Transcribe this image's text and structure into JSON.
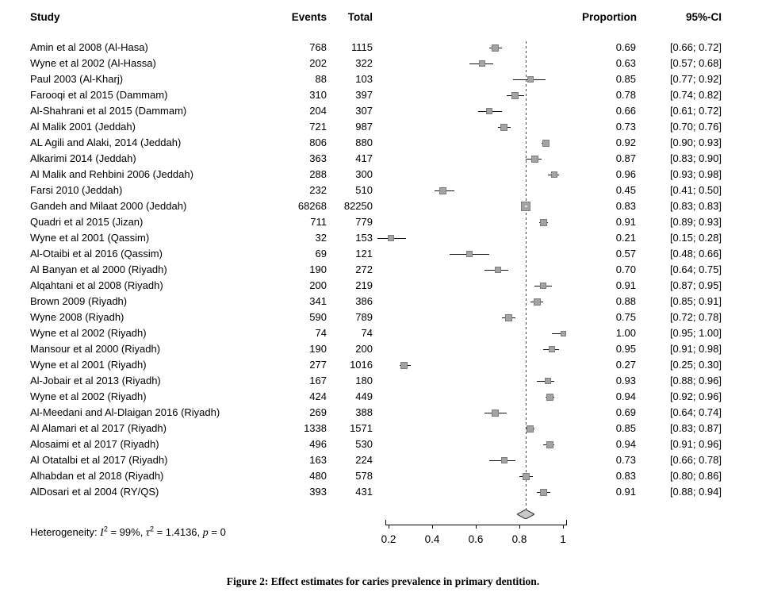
{
  "header": {
    "study": "Study",
    "events": "Events",
    "total": "Total",
    "proportion": "Proportion",
    "ci": "95%-CI"
  },
  "chart_data": {
    "type": "forest",
    "title": "",
    "x_ticks": [
      0.2,
      0.4,
      0.6,
      0.8,
      1
    ],
    "axis_range": [
      0.13,
      1.02
    ],
    "dashed_reference_line": 0.83,
    "pooled": {
      "proportion": 0.83,
      "ci_low": 0.79,
      "ci_high": 0.87
    },
    "marker_color": "#a3a3a3",
    "studies": [
      {
        "study": "Amin et al 2008 (Al-Hasa)",
        "events": 768,
        "total": 1115,
        "proportion": 0.69,
        "ci_low": 0.66,
        "ci_high": 0.72
      },
      {
        "study": "Wyne et al 2002 (Al-Hassa)",
        "events": 202,
        "total": 322,
        "proportion": 0.63,
        "ci_low": 0.57,
        "ci_high": 0.68
      },
      {
        "study": "Paul 2003 (Al-Kharj)",
        "events": 88,
        "total": 103,
        "proportion": 0.85,
        "ci_low": 0.77,
        "ci_high": 0.92
      },
      {
        "study": "Farooqi et al 2015 (Dammam)",
        "events": 310,
        "total": 397,
        "proportion": 0.78,
        "ci_low": 0.74,
        "ci_high": 0.82
      },
      {
        "study": "Al-Shahrani et al 2015 (Dammam)",
        "events": 204,
        "total": 307,
        "proportion": 0.66,
        "ci_low": 0.61,
        "ci_high": 0.72
      },
      {
        "study": "Al Malik 2001 (Jeddah)",
        "events": 721,
        "total": 987,
        "proportion": 0.73,
        "ci_low": 0.7,
        "ci_high": 0.76
      },
      {
        "study": "AL Agili and Alaki, 2014 (Jeddah)",
        "events": 806,
        "total": 880,
        "proportion": 0.92,
        "ci_low": 0.9,
        "ci_high": 0.93
      },
      {
        "study": "Alkarimi 2014 (Jeddah)",
        "events": 363,
        "total": 417,
        "proportion": 0.87,
        "ci_low": 0.83,
        "ci_high": 0.9
      },
      {
        "study": "Al Malik and Rehbini 2006 (Jeddah)",
        "events": 288,
        "total": 300,
        "proportion": 0.96,
        "ci_low": 0.93,
        "ci_high": 0.98
      },
      {
        "study": "Farsi 2010 (Jeddah)",
        "events": 232,
        "total": 510,
        "proportion": 0.45,
        "ci_low": 0.41,
        "ci_high": 0.5
      },
      {
        "study": "Gandeh and Milaat 2000 (Jeddah)",
        "events": 68268,
        "total": 82250,
        "proportion": 0.83,
        "ci_low": 0.83,
        "ci_high": 0.83
      },
      {
        "study": "Quadri et al 2015 (Jizan)",
        "events": 711,
        "total": 779,
        "proportion": 0.91,
        "ci_low": 0.89,
        "ci_high": 0.93
      },
      {
        "study": "Wyne et al 2001 (Qassim)",
        "events": 32,
        "total": 153,
        "proportion": 0.21,
        "ci_low": 0.15,
        "ci_high": 0.28
      },
      {
        "study": "Al-Otaibi et al 2016 (Qassim)",
        "events": 69,
        "total": 121,
        "proportion": 0.57,
        "ci_low": 0.48,
        "ci_high": 0.66
      },
      {
        "study": "Al Banyan et al 2000 (Riyadh)",
        "events": 190,
        "total": 272,
        "proportion": 0.7,
        "ci_low": 0.64,
        "ci_high": 0.75
      },
      {
        "study": "Alqahtani et al 2008 (Riyadh)",
        "events": 200,
        "total": 219,
        "proportion": 0.91,
        "ci_low": 0.87,
        "ci_high": 0.95
      },
      {
        "study": "Brown 2009 (Riyadh)",
        "events": 341,
        "total": 386,
        "proportion": 0.88,
        "ci_low": 0.85,
        "ci_high": 0.91
      },
      {
        "study": "Wyne 2008 (Riyadh)",
        "events": 590,
        "total": 789,
        "proportion": 0.75,
        "ci_low": 0.72,
        "ci_high": 0.78
      },
      {
        "study": "Wyne et al 2002 (Riyadh)",
        "events": 74,
        "total": 74,
        "proportion": 1.0,
        "ci_low": 0.95,
        "ci_high": 1.0
      },
      {
        "study": "Mansour et al 2000 (Riyadh)",
        "events": 190,
        "total": 200,
        "proportion": 0.95,
        "ci_low": 0.91,
        "ci_high": 0.98
      },
      {
        "study": "Wyne et al 2001 (Riyadh)",
        "events": 277,
        "total": 1016,
        "proportion": 0.27,
        "ci_low": 0.25,
        "ci_high": 0.3
      },
      {
        "study": "Al-Jobair et al 2013 (Riyadh)",
        "events": 167,
        "total": 180,
        "proportion": 0.93,
        "ci_low": 0.88,
        "ci_high": 0.96
      },
      {
        "study": "Wyne et al 2002 (Riyadh)",
        "events": 424,
        "total": 449,
        "proportion": 0.94,
        "ci_low": 0.92,
        "ci_high": 0.96
      },
      {
        "study": "Al-Meedani and Al-Dlaigan 2016 (Riyadh)",
        "events": 269,
        "total": 388,
        "proportion": 0.69,
        "ci_low": 0.64,
        "ci_high": 0.74
      },
      {
        "study": "Al Alamari et al 2017 (Riyadh)",
        "events": 1338,
        "total": 1571,
        "proportion": 0.85,
        "ci_low": 0.83,
        "ci_high": 0.87
      },
      {
        "study": "Alosaimi et al 2017 (Riyadh)",
        "events": 496,
        "total": 530,
        "proportion": 0.94,
        "ci_low": 0.91,
        "ci_high": 0.96
      },
      {
        "study": "Al Otatalbi et al 2017 (Riyadh)",
        "events": 163,
        "total": 224,
        "proportion": 0.73,
        "ci_low": 0.66,
        "ci_high": 0.78
      },
      {
        "study": "Alhabdan et al 2018 (Riyadh)",
        "events": 480,
        "total": 578,
        "proportion": 0.83,
        "ci_low": 0.8,
        "ci_high": 0.86
      },
      {
        "study": "AlDosari et al 2004 (RY/QS)",
        "events": 393,
        "total": 431,
        "proportion": 0.91,
        "ci_low": 0.88,
        "ci_high": 0.94
      }
    ]
  },
  "heterogeneity": {
    "label": "Heterogeneity: ",
    "i_symbol": "I",
    "sup": "2",
    "i_value": " = 99%, ",
    "tau_symbol": "τ",
    "tau_value": " = 1.4136, ",
    "p_symbol": "p",
    "p_value": " = 0"
  },
  "caption": "Figure 2: Effect estimates for caries prevalence in primary dentition."
}
